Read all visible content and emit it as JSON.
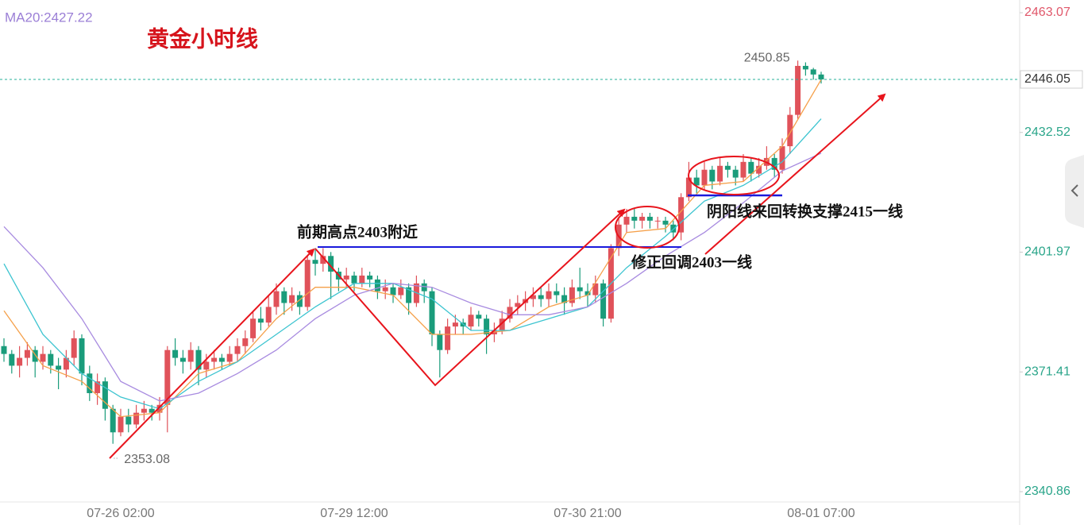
{
  "chart_data": {
    "type": "candlestick",
    "title": "黄金小时线",
    "ma_label": "MA20:2427.22",
    "annotations": [
      "前期高点2403附近",
      "修正回调2403一线",
      "阴阳线来回转换支撑2415一线"
    ],
    "up_color": "#e0525a",
    "down_color": "#1a9c7b",
    "last_price_color": "#26b09a",
    "ylim": [
      2338.23,
      2466.31
    ],
    "yticks": [
      2340.86,
      2371.41,
      2401.97,
      2432.52,
      2463.07
    ],
    "ytick_colors": [
      "#2aa58a",
      "#2aa58a",
      "#2aa58a",
      "#2aa58a",
      "#e0576a"
    ],
    "categories": [
      null,
      null,
      null,
      null,
      null,
      null,
      null,
      null,
      null,
      null,
      null,
      null,
      null,
      null,
      null,
      "07-26 02:00",
      null,
      null,
      null,
      null,
      null,
      null,
      null,
      null,
      null,
      null,
      null,
      null,
      null,
      null,
      null,
      null,
      null,
      null,
      null,
      null,
      null,
      null,
      null,
      null,
      null,
      null,
      null,
      null,
      null,
      "07-29 12:00",
      null,
      null,
      null,
      null,
      null,
      null,
      null,
      null,
      null,
      null,
      null,
      null,
      null,
      null,
      null,
      null,
      null,
      null,
      null,
      null,
      null,
      null,
      null,
      null,
      null,
      null,
      null,
      null,
      null,
      "07-30 21:00",
      null,
      null,
      null,
      null,
      null,
      null,
      null,
      null,
      null,
      null,
      null,
      null,
      null,
      null,
      null,
      null,
      null,
      null,
      null,
      null,
      null,
      null,
      null,
      null,
      null,
      null,
      null,
      null,
      null,
      "08-01 07:00"
    ],
    "open": [
      2378,
      2376,
      2373,
      2375,
      2377,
      2374,
      2376,
      2373,
      2372,
      2375,
      2380,
      2371,
      2366,
      2369,
      2362,
      2356,
      2360,
      2358,
      2361,
      2362,
      2361,
      2363,
      2377,
      2375,
      2374,
      2377,
      2372,
      2374,
      2375,
      2374,
      2376,
      2378,
      2380,
      2385,
      2384,
      2388,
      2392,
      2389,
      2391,
      2388,
      2400,
      2399,
      2401,
      2397,
      2395,
      2396,
      2394,
      2396,
      2395,
      2392,
      2393,
      2391,
      2393,
      2389,
      2394,
      2392,
      2381,
      2377,
      2383,
      2384,
      2383,
      2386,
      2385,
      2381,
      2382,
      2385,
      2388,
      2389,
      2390,
      2391,
      2390,
      2392,
      2391,
      2389,
      2393,
      2392,
      2391,
      2394,
      2385,
      2403,
      2409,
      2411,
      2410,
      2411,
      2410,
      2410,
      2409,
      2407,
      2416,
      2421,
      2419,
      2423,
      2420,
      2424,
      2423,
      2421,
      2425,
      2422,
      2424,
      2426,
      2423,
      2429,
      2437,
      2449.5,
      2448.6,
      2447.3
    ],
    "high": [
      2380,
      2377,
      2378,
      2379,
      2378,
      2378,
      2377,
      2375,
      2377,
      2382,
      2381,
      2373,
      2371,
      2370,
      2363,
      2362,
      2362,
      2363,
      2364,
      2363,
      2365,
      2378,
      2380,
      2377,
      2379,
      2378,
      2376,
      2377,
      2376,
      2378,
      2380,
      2382,
      2387,
      2388,
      2391,
      2394,
      2393,
      2393,
      2392,
      2401,
      2403,
      2403,
      2402,
      2398,
      2398,
      2397,
      2398,
      2397,
      2396,
      2395,
      2394,
      2395,
      2394,
      2396,
      2395,
      2393,
      2382,
      2385,
      2386,
      2385,
      2388,
      2387,
      2386,
      2384,
      2387,
      2390,
      2391,
      2392,
      2393,
      2393,
      2394,
      2394,
      2393,
      2395,
      2398,
      2394,
      2396,
      2395,
      2404,
      2411,
      2413,
      2413,
      2412,
      2412,
      2411,
      2411,
      2410,
      2417,
      2425,
      2423,
      2425,
      2424,
      2426,
      2425,
      2424,
      2427,
      2426,
      2426,
      2429,
      2427,
      2431,
      2439,
      2450.85,
      2450.4,
      2449,
      2448
    ],
    "low": [
      2374,
      2371,
      2370,
      2373,
      2370,
      2372,
      2371,
      2367,
      2370,
      2373,
      2368,
      2364,
      2363,
      2359,
      2353.08,
      2355,
      2356,
      2357,
      2359,
      2359,
      2359,
      2356,
      2373,
      2371,
      2372,
      2368,
      2370,
      2372,
      2372,
      2373,
      2374,
      2376,
      2379,
      2382,
      2383,
      2386,
      2386,
      2387,
      2386,
      2387,
      2396,
      2397,
      2390,
      2392,
      2393,
      2392,
      2393,
      2393,
      2390,
      2390,
      2389,
      2390,
      2386,
      2388,
      2389,
      2378,
      2370,
      2376,
      2381,
      2381,
      2382,
      2383,
      2376,
      2379,
      2381,
      2384,
      2386,
      2387,
      2388,
      2388,
      2388,
      2389,
      2386,
      2388,
      2390,
      2388,
      2389,
      2383,
      2384,
      2401,
      2407,
      2408,
      2408,
      2408,
      2408,
      2407,
      2405,
      2405,
      2415,
      2417,
      2418,
      2418,
      2419,
      2421,
      2419,
      2420,
      2420,
      2421,
      2423,
      2421,
      2422,
      2427,
      2436,
      2447,
      2446,
      2445
    ],
    "close": [
      2376,
      2373,
      2375,
      2377,
      2374,
      2376,
      2373,
      2372,
      2375,
      2380,
      2371,
      2366,
      2369,
      2362,
      2356,
      2360,
      2358,
      2361,
      2362,
      2361,
      2363,
      2377,
      2375,
      2374,
      2377,
      2372,
      2374,
      2375,
      2374,
      2376,
      2378,
      2380,
      2385,
      2384,
      2388,
      2392,
      2389,
      2391,
      2388,
      2400,
      2399,
      2401,
      2397,
      2395,
      2396,
      2394,
      2396,
      2395,
      2392,
      2393,
      2391,
      2393,
      2389,
      2394,
      2392,
      2381,
      2377,
      2383,
      2384,
      2383,
      2386,
      2385,
      2381,
      2382,
      2385,
      2388,
      2389,
      2390,
      2391,
      2390,
      2392,
      2391,
      2389,
      2393,
      2392,
      2391,
      2394,
      2385,
      2403,
      2409,
      2411,
      2410,
      2411,
      2410,
      2410,
      2409,
      2407,
      2416,
      2421,
      2419,
      2423,
      2420,
      2424,
      2423,
      2421,
      2425,
      2422,
      2424,
      2426,
      2423,
      2429,
      2437,
      2449.5,
      2448.6,
      2447.3,
      2446.05
    ],
    "ma_lines": [
      {
        "color": "#f5a04a",
        "x": [
          0,
          5,
          10,
          15,
          20,
          25,
          30,
          35,
          40,
          45,
          50,
          55,
          60,
          65,
          70,
          75,
          80,
          85,
          90,
          95,
          100,
          105
        ],
        "values": [
          2387,
          2373,
          2369,
          2360,
          2361,
          2371,
          2374,
          2385,
          2393,
          2393,
          2391,
          2381,
          2381,
          2382,
          2388,
          2391,
          2407,
          2408,
          2419,
          2420,
          2429,
          2446
        ]
      },
      {
        "color": "#3cc4d0",
        "x": [
          0,
          5,
          10,
          15,
          20,
          25,
          30,
          35,
          40,
          45,
          50,
          55,
          60,
          65,
          70,
          75,
          80,
          85,
          90,
          95,
          100,
          105
        ],
        "values": [
          2399,
          2381,
          2371,
          2365,
          2362,
          2369,
          2374,
          2381,
          2388,
          2394,
          2394,
          2390,
          2382,
          2382,
          2385,
          2388,
          2398,
          2406,
          2415,
          2419,
          2425,
          2436
        ]
      },
      {
        "color": "#a88be0",
        "x": [
          0,
          5,
          10,
          15,
          20,
          25,
          30,
          35,
          40,
          45,
          50,
          55,
          60,
          65,
          70,
          75,
          80,
          85,
          90,
          95,
          100,
          105
        ],
        "values": [
          2408.5,
          2398,
          2385,
          2369,
          2364,
          2366,
          2371,
          2377,
          2385,
          2391,
          2394,
          2393,
          2389,
          2386,
          2386,
          2388,
          2394,
          2401,
          2407,
          2414.6,
          2422.7,
          2427.22
        ]
      }
    ]
  }
}
